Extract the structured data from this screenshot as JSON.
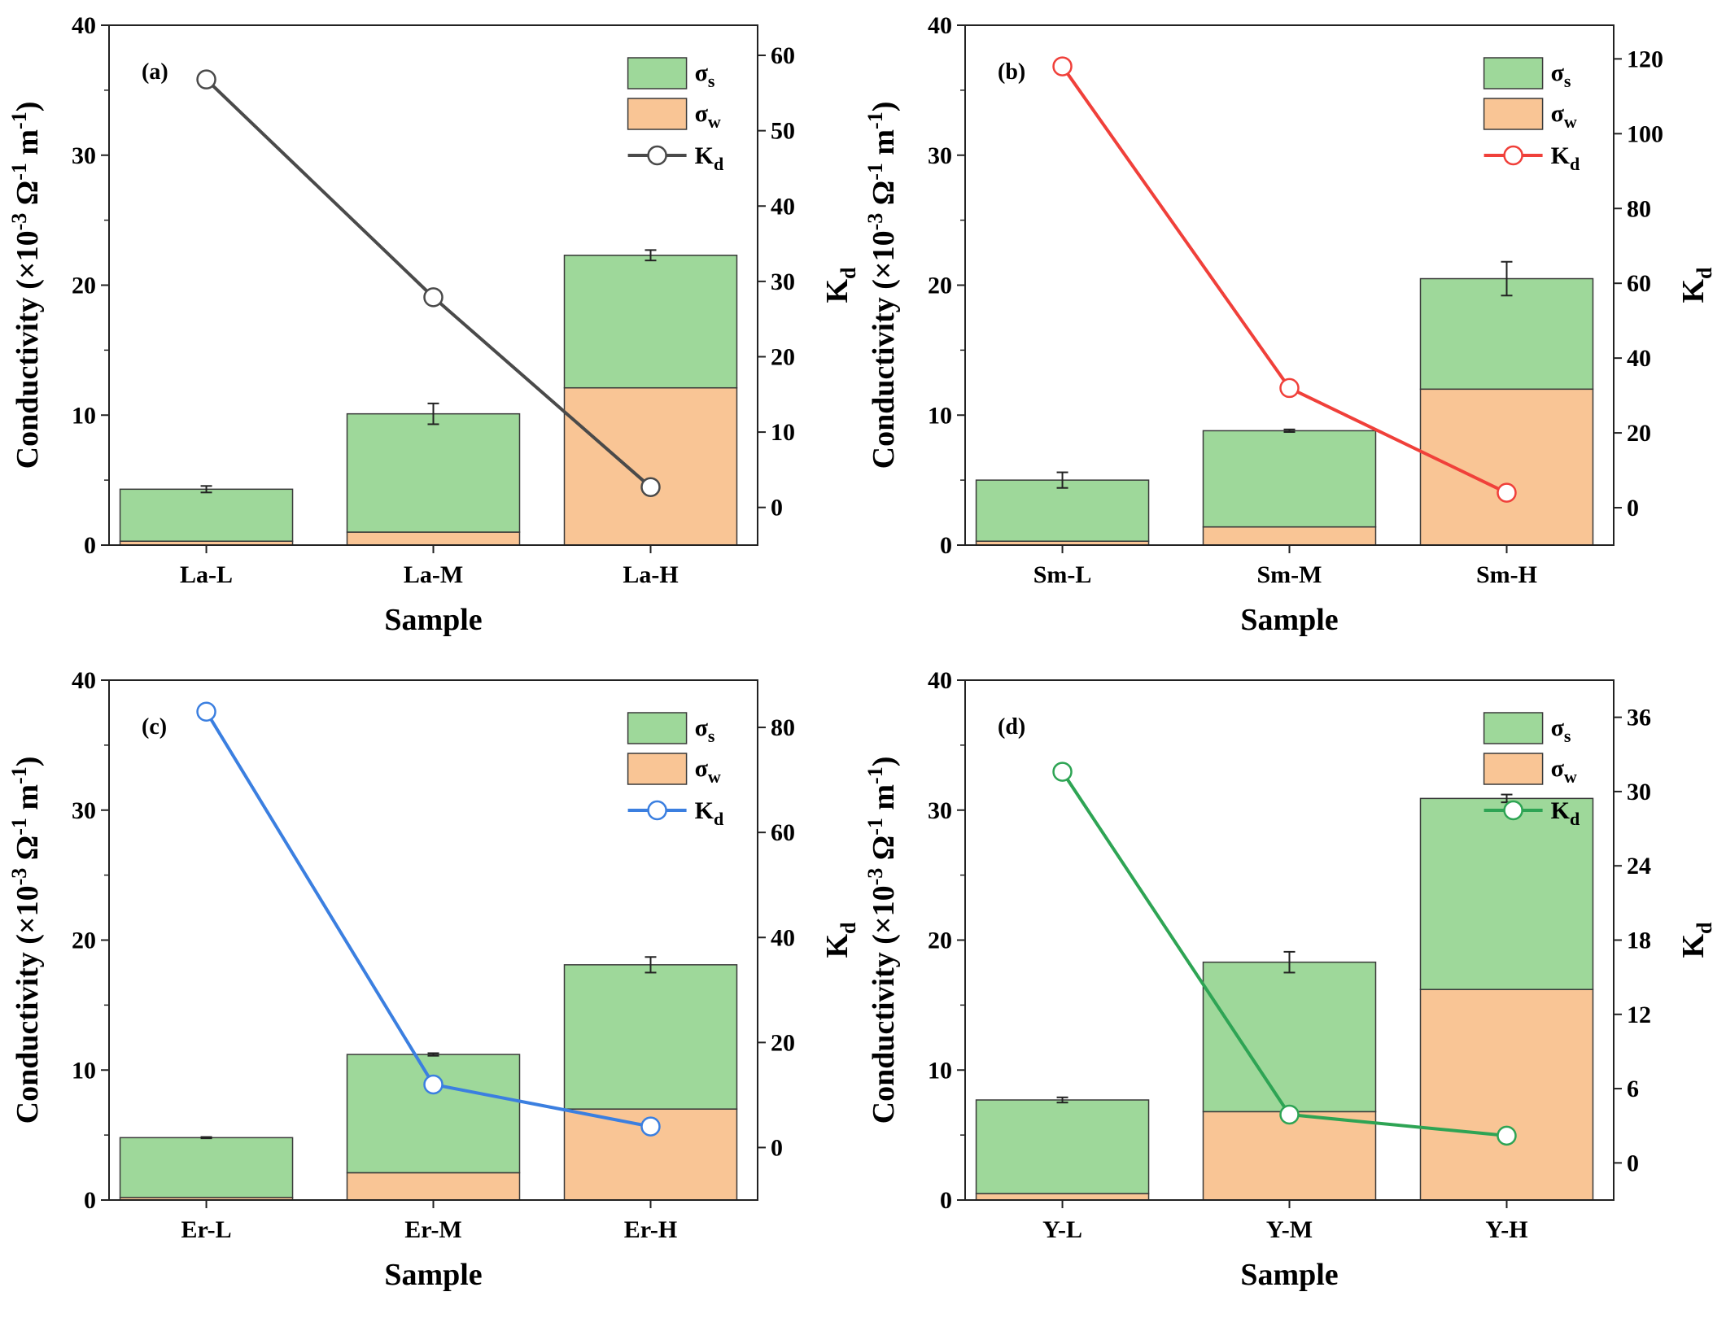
{
  "chart_data": [
    {
      "type": "bar",
      "stacked": true,
      "panel_label": "(a)",
      "categories": [
        "La-L",
        "La-M",
        "La-H"
      ],
      "xlabel": "Sample",
      "ylabel": {
        "text": "Conductivity (×10",
        "sup1": "-3",
        "mid": " Ω",
        "sup2": "-1",
        "end": " m",
        "sup3": "-1",
        "close": ")"
      },
      "y2label": {
        "base": "K",
        "sub": "d"
      },
      "ylim": [
        0,
        40
      ],
      "yticks": [
        0,
        10,
        20,
        30,
        40
      ],
      "y2lim": [
        -5,
        64
      ],
      "y2ticks": [
        0,
        10,
        20,
        30,
        40,
        50,
        60
      ],
      "series": [
        {
          "name": "σw",
          "symbol": "σ",
          "sub": "w",
          "color": "#f9c595",
          "values": [
            0.3,
            1.0,
            12.1
          ]
        },
        {
          "name": "σs",
          "symbol": "σ",
          "sub": "s",
          "color": "#9ed89a",
          "values": [
            4.0,
            9.1,
            10.2
          ]
        }
      ],
      "error_bars": [
        0.25,
        0.8,
        0.4
      ],
      "line": {
        "name": "Kd",
        "base": "K",
        "sub": "d",
        "color": "#4a4a4a",
        "values": [
          56.8,
          27.9,
          2.7
        ]
      },
      "legend_position": "top-right"
    },
    {
      "type": "bar",
      "stacked": true,
      "panel_label": "(b)",
      "categories": [
        "Sm-L",
        "Sm-M",
        "Sm-H"
      ],
      "xlabel": "Sample",
      "ylabel": {
        "text": "Conductivity (×10",
        "sup1": "-3",
        "mid": " Ω",
        "sup2": "-1",
        "end": " m",
        "sup3": "-1",
        "close": ")"
      },
      "y2label": {
        "base": "K",
        "sub": "d"
      },
      "ylim": [
        0,
        40
      ],
      "yticks": [
        0,
        10,
        20,
        30,
        40
      ],
      "y2lim": [
        -10,
        129
      ],
      "y2ticks": [
        0,
        20,
        40,
        60,
        80,
        100,
        120
      ],
      "series": [
        {
          "name": "σw",
          "symbol": "σ",
          "sub": "w",
          "color": "#f9c595",
          "values": [
            0.3,
            1.4,
            12.0
          ]
        },
        {
          "name": "σs",
          "symbol": "σ",
          "sub": "s",
          "color": "#9ed89a",
          "values": [
            4.7,
            7.4,
            8.5
          ]
        }
      ],
      "error_bars": [
        0.6,
        0.1,
        1.3
      ],
      "line": {
        "name": "Kd",
        "base": "K",
        "sub": "d",
        "color": "#f0403a",
        "values": [
          118,
          32,
          4
        ]
      },
      "legend_position": "top-right"
    },
    {
      "type": "bar",
      "stacked": true,
      "panel_label": "(c)",
      "categories": [
        "Er-L",
        "Er-M",
        "Er-H"
      ],
      "xlabel": "Sample",
      "ylabel": {
        "text": "Conductivity (×10",
        "sup1": "-3",
        "mid": " Ω",
        "sup2": "-1",
        "end": " m",
        "sup3": "-1",
        "close": ")"
      },
      "y2label": {
        "base": "K",
        "sub": "d"
      },
      "ylim": [
        0,
        40
      ],
      "yticks": [
        0,
        10,
        20,
        30,
        40
      ],
      "y2lim": [
        -10,
        89
      ],
      "y2ticks": [
        0,
        20,
        40,
        60,
        80
      ],
      "series": [
        {
          "name": "σw",
          "symbol": "σ",
          "sub": "w",
          "color": "#f9c595",
          "values": [
            0.2,
            2.1,
            7.0
          ]
        },
        {
          "name": "σs",
          "symbol": "σ",
          "sub": "s",
          "color": "#9ed89a",
          "values": [
            4.6,
            9.1,
            11.1
          ]
        }
      ],
      "error_bars": [
        0.05,
        0.1,
        0.6
      ],
      "line": {
        "name": "Kd",
        "base": "K",
        "sub": "d",
        "color": "#3b7fe0",
        "values": [
          83,
          12,
          4
        ]
      },
      "legend_position": "top-right"
    },
    {
      "type": "bar",
      "stacked": true,
      "panel_label": "(d)",
      "categories": [
        "Y-L",
        "Y-M",
        "Y-H"
      ],
      "xlabel": "Sample",
      "ylabel": {
        "text": "Conductivity (×10",
        "sup1": "-3",
        "mid": " Ω",
        "sup2": "-1",
        "end": " m",
        "sup3": "-1",
        "close": ")"
      },
      "y2label": {
        "base": "K",
        "sub": "d"
      },
      "ylim": [
        0,
        40
      ],
      "yticks": [
        0,
        10,
        20,
        30,
        40
      ],
      "y2lim": [
        -3,
        39
      ],
      "y2ticks": [
        0,
        6,
        12,
        18,
        24,
        30,
        36
      ],
      "series": [
        {
          "name": "σw",
          "symbol": "σ",
          "sub": "w",
          "color": "#f9c595",
          "values": [
            0.5,
            6.8,
            16.2
          ]
        },
        {
          "name": "σs",
          "symbol": "σ",
          "sub": "s",
          "color": "#9ed89a",
          "values": [
            7.2,
            11.5,
            14.7
          ]
        }
      ],
      "error_bars": [
        0.2,
        0.8,
        0.3
      ],
      "line": {
        "name": "Kd",
        "base": "K",
        "sub": "d",
        "color": "#2ea454",
        "values": [
          31.6,
          3.9,
          2.2
        ]
      },
      "legend_position": "top-right"
    }
  ]
}
